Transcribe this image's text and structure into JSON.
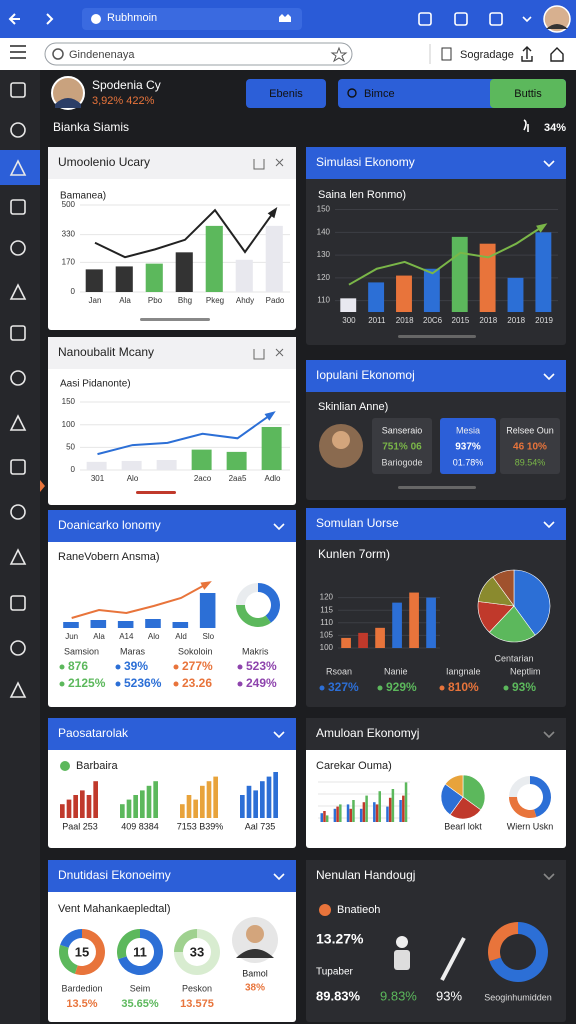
{
  "browser": {
    "tab_title": "Rubhmoin",
    "search_placeholder": "Gindenenaya",
    "bookmark_label": "Sogradage"
  },
  "header": {
    "user_name": "Spodenia Cy",
    "user_stats": "3,92% 422%",
    "buttons": [
      "Ebenis",
      "Bimce",
      "Buttis"
    ],
    "section_title": "Bianka Siamis",
    "section_value": "34%"
  },
  "cards": [
    {
      "title": "Umoolenio Ucary",
      "subtitle": "Bamanea)",
      "chart": {
        "type": "bar",
        "categories": [
          "Jan",
          "Ala",
          "Pbo",
          "Bhg",
          "Pkeg",
          "Ahdy",
          "Pado"
        ],
        "series": [
          {
            "type": "bar",
            "colors": [
              "#333333",
              "#333333",
              "#5cb85c",
              "#333333",
              "#5cb85c",
              "#e8e8ee",
              "#e8e8ee"
            ],
            "values": [
              130,
              147,
              163,
              228,
              380,
              185,
              380
            ]
          },
          {
            "type": "line",
            "color": "#222222",
            "values": [
              283,
              200,
              245,
              300,
              470,
              230,
              470
            ]
          }
        ],
        "ylim": [
          0,
          500
        ],
        "yticks": [
          0,
          170,
          330,
          500
        ],
        "grid": true
      }
    },
    {
      "title": "Simulasi Ekonomy",
      "subtitle": "Saina len Ronmo)",
      "chart": {
        "type": "bar",
        "categories": [
          "300",
          "2011",
          "2018",
          "20C6",
          "2015",
          "2018",
          "2018",
          "2019"
        ],
        "series": [
          {
            "type": "bar",
            "colors": [
              "#e8e8f0",
              "#2c6fd6",
              "#e8743b",
              "#2c6fd6",
              "#5cb85c",
              "#e8743b",
              "#2c6fd6",
              "#2c6fd6"
            ],
            "values": [
              111,
              118,
              121,
              124,
              138,
              135,
              120,
              140
            ]
          },
          {
            "type": "line",
            "color": "#7ab648",
            "values": [
              117,
              124,
              127,
              122,
              131,
              129,
              135,
              143
            ]
          }
        ],
        "ylim": [
          105,
          152
        ],
        "yticks": [
          110,
          120,
          130,
          140,
          150
        ],
        "grid": true
      }
    },
    {
      "title": "Nanoubalit Mcany",
      "subtitle": "Aasi Pidanonte)",
      "chart": {
        "type": "bar",
        "categories": [
          "301",
          "Alo",
          null,
          "2aco",
          "2aa5",
          "Adlo"
        ],
        "series": [
          {
            "type": "bar",
            "colors": [
              "#e8e8ee",
              "#e8e8ee",
              "#e8e8ee",
              "#5cb85c",
              "#5cb85c",
              "#5cb85c"
            ],
            "values": [
              18,
              20,
              22,
              45,
              40,
              95
            ]
          },
          {
            "type": "line",
            "color": "#2c6fd6",
            "values": [
              35,
              55,
              60,
              80,
              70,
              125
            ]
          }
        ],
        "ylim": [
          0,
          170
        ],
        "yticks": [
          0,
          50,
          100,
          150
        ],
        "grid": true
      }
    },
    {
      "title": "Iopulani Ekonomoj",
      "subtitle": "Skinlian Anne)",
      "boxes": [
        {
          "label": "Sanseraio",
          "value": "751% 06",
          "note": "Bariogode"
        },
        {
          "label": "Mesia",
          "value": "937%",
          "note": "01.78%"
        },
        {
          "label": "Relsee Oun",
          "value": "46 10%",
          "note": "89.54%"
        }
      ]
    },
    {
      "title": "Doanicarko lonomy",
      "subtitle": "RaneVobern Ansma)",
      "chart": {
        "type": "bar",
        "categories": [
          "Jun",
          "Ala",
          "A14",
          "Alo",
          "Ald",
          "Slo"
        ],
        "series": [
          {
            "type": "bar",
            "color": "#2c6fd6",
            "values": [
              6,
              8,
              7,
              9,
              6,
              35
            ]
          },
          {
            "type": "line",
            "color": "#e8743b",
            "values": [
              10,
              18,
              15,
              22,
              30,
              45
            ]
          }
        ],
        "ylim": [
          0,
          50
        ],
        "grid": false
      },
      "donut": {
        "values": [
          40,
          35,
          25
        ],
        "colors": [
          "#2c6fd6",
          "#5cb85c",
          "#e9ecef"
        ]
      },
      "stats": [
        {
          "label": "Samsion",
          "value": "876",
          "change": "2125%",
          "color": "#5cb85c"
        },
        {
          "label": "Maras",
          "value": "39%",
          "change": "5236%",
          "color": "#2c6fd6"
        },
        {
          "label": "Sokoloin",
          "value": "277%",
          "change": "23.26",
          "color": "#e8743b"
        },
        {
          "label": "Makris",
          "value": "523%",
          "change": "249%",
          "color": "#8e44ad"
        }
      ]
    },
    {
      "title": "Somulan Uorse",
      "subtitle": "Kunlen 7orm)",
      "chart": {
        "type": "bar",
        "categories": [
          null,
          null,
          null,
          null,
          null,
          null
        ],
        "series": [
          {
            "type": "bar",
            "colors": [
              "#e8743b",
              "#c0392b",
              "#e8743b",
              "#2c6fd6",
              "#e8743b",
              "#2c6fd6"
            ],
            "values": [
              104,
              106,
              108,
              118,
              122,
              120
            ]
          }
        ],
        "ylim": [
          100,
          125
        ],
        "yticks": [
          100,
          105,
          110,
          115,
          120
        ],
        "grid": true
      },
      "pie": {
        "label": "Centarian",
        "values": [
          40,
          22,
          15,
          13,
          10
        ],
        "colors": [
          "#2c6fd6",
          "#5cb85c",
          "#c0392b",
          "#8a8a2e",
          "#a0522d"
        ]
      },
      "stats": [
        {
          "label": "Rsoan",
          "value": "327%",
          "color": "#2c6fd6"
        },
        {
          "label": "Nanie",
          "value": "929%",
          "color": "#5cb85c"
        },
        {
          "label": "Iangnale",
          "value": "810%",
          "color": "#e8743b"
        },
        {
          "label": "Neptlim",
          "value": "93%",
          "color": "#5cb85c"
        }
      ]
    },
    {
      "title": "Paosatarolak",
      "subtitle": "Barbaira",
      "groups": {
        "ylim": [
          0,
          10
        ],
        "items": [
          {
            "label": "Paal 253",
            "color": "#c0392b",
            "values": [
              3,
              4,
              5,
              6,
              5,
              8
            ]
          },
          {
            "label": "409 8384",
            "color": "#5cb85c",
            "values": [
              3,
              4,
              5,
              6,
              7,
              8
            ]
          },
          {
            "label": "7153 B39%",
            "color": "#e8a33b",
            "values": [
              3,
              5,
              4,
              7,
              8,
              9
            ]
          },
          {
            "label": "Aal 735",
            "color": "#2c6fd6",
            "values": [
              5,
              7,
              6,
              8,
              9,
              10
            ]
          }
        ]
      }
    },
    {
      "title": "Amuloan Ekonomyj",
      "subtitle": "Carekar Ouma)",
      "chart": {
        "type": "bar",
        "categories": [
          null,
          null,
          null,
          null,
          null,
          null,
          null
        ],
        "series": [
          {
            "type": "bar",
            "color": "#2c6fd6",
            "values": [
              4,
              6,
              8,
              6,
              9,
              7,
              10
            ]
          },
          {
            "type": "bar",
            "color": "#c0392b",
            "values": [
              5,
              7,
              6,
              9,
              8,
              11,
              12
            ]
          },
          {
            "type": "bar",
            "color": "#5cb85c",
            "values": [
              3,
              8,
              10,
              12,
              14,
              15,
              18
            ]
          }
        ],
        "ylim": [
          0,
          20
        ],
        "grid": false
      },
      "pie": {
        "label": "Bearl lokt",
        "values": [
          35,
          25,
          25,
          15
        ],
        "colors": [
          "#5cb85c",
          "#c0392b",
          "#2c6fd6",
          "#e8a33b"
        ]
      },
      "donut": {
        "label": "Wiern Uskn",
        "values": [
          45,
          30,
          25
        ],
        "colors": [
          "#2c6fd6",
          "#e8743b",
          "#e9ecef"
        ]
      }
    },
    {
      "title": "Dnutidasi Ekonoeimy",
      "subtitle": "Vent Mahankaepledtal)",
      "donuts": [
        {
          "center": 15,
          "label": "Bardedion",
          "value": "13.5%",
          "values": [
            55,
            25,
            20
          ],
          "colors": [
            "#e8743b",
            "#5cb85c",
            "#2c6fd6"
          ]
        },
        {
          "center": 11,
          "label": "Seim",
          "value": "35.65%",
          "values": [
            70,
            30
          ],
          "colors": [
            "#2c6fd6",
            "#5cb85c"
          ]
        },
        {
          "center": 33,
          "label": "Peskon",
          "value": "13.575",
          "values": [
            75,
            25
          ],
          "colors": [
            "#d8ecd0",
            "#9fd18f"
          ]
        }
      ],
      "person": {
        "name": "Bamol",
        "value": "38%"
      }
    },
    {
      "title": "Nenulan Handougj",
      "subtitle": "Bnatieoh",
      "metric": "13.27%",
      "caption": "Tupaber",
      "values": [
        "89.83%",
        "9.83%",
        "93%"
      ],
      "donut": {
        "label": "Seoginhumidden",
        "values": [
          70,
          30
        ],
        "colors": [
          "#2c6fd6",
          "#e8743b"
        ]
      }
    }
  ]
}
